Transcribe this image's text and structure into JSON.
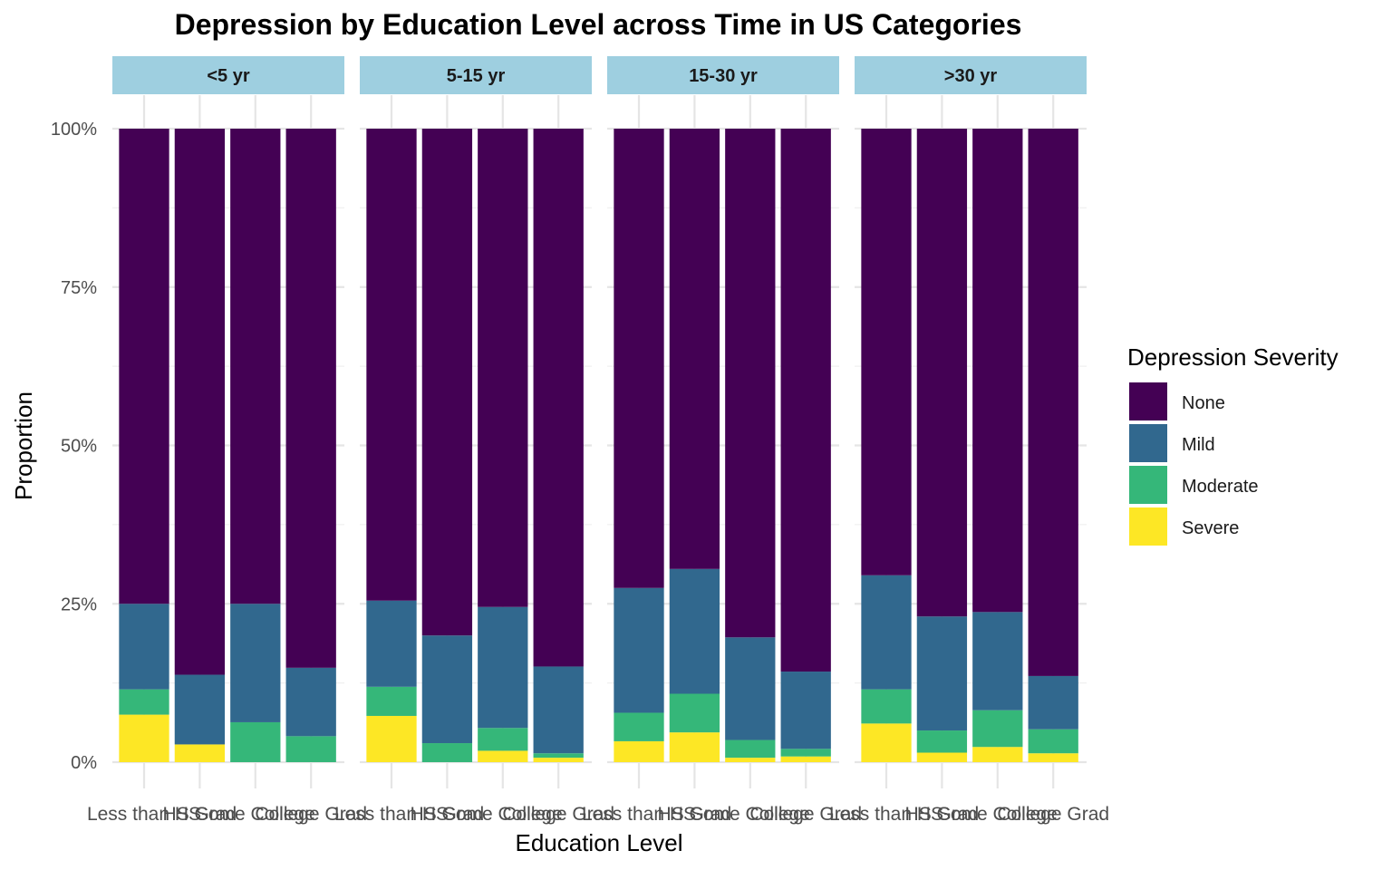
{
  "chart_data": {
    "type": "bar",
    "stacked": true,
    "normalized": true,
    "title": "Depression by Education Level across Time in US Categories",
    "xlabel": "Education Level",
    "ylabel": "Proportion",
    "ylim": [
      0,
      1
    ],
    "yticks": [
      "0%",
      "25%",
      "50%",
      "75%",
      "100%"
    ],
    "facets": [
      "<5 yr",
      "5-15 yr",
      "15-30 yr",
      ">30 yr"
    ],
    "categories": [
      "Less than HS",
      "HS Grad",
      "Some College",
      "College Grad"
    ],
    "legend_title": "Depression Severity",
    "legend_position": "right",
    "grid": true,
    "series": [
      {
        "name": "None",
        "color": "#440154",
        "values": [
          [
            0.75,
            0.862,
            0.75,
            0.851
          ],
          [
            0.745,
            0.8,
            0.755,
            0.849
          ],
          [
            0.725,
            0.695,
            0.803,
            0.857
          ],
          [
            0.705,
            0.77,
            0.763,
            0.864
          ]
        ]
      },
      {
        "name": "Mild",
        "color": "#31688E",
        "values": [
          [
            0.135,
            0.11,
            0.187,
            0.108
          ],
          [
            0.136,
            0.17,
            0.191,
            0.137
          ],
          [
            0.197,
            0.197,
            0.162,
            0.122
          ],
          [
            0.18,
            0.18,
            0.155,
            0.084
          ]
        ]
      },
      {
        "name": "Moderate",
        "color": "#35B779",
        "values": [
          [
            0.04,
            0.0,
            0.063,
            0.041
          ],
          [
            0.046,
            0.03,
            0.036,
            0.007
          ],
          [
            0.045,
            0.061,
            0.028,
            0.012
          ],
          [
            0.054,
            0.035,
            0.058,
            0.038
          ]
        ]
      },
      {
        "name": "Severe",
        "color": "#FDE725",
        "values": [
          [
            0.075,
            0.028,
            0.0,
            0.0
          ],
          [
            0.073,
            0.0,
            0.018,
            0.007
          ],
          [
            0.033,
            0.047,
            0.007,
            0.009
          ],
          [
            0.061,
            0.015,
            0.024,
            0.014
          ]
        ]
      }
    ]
  }
}
